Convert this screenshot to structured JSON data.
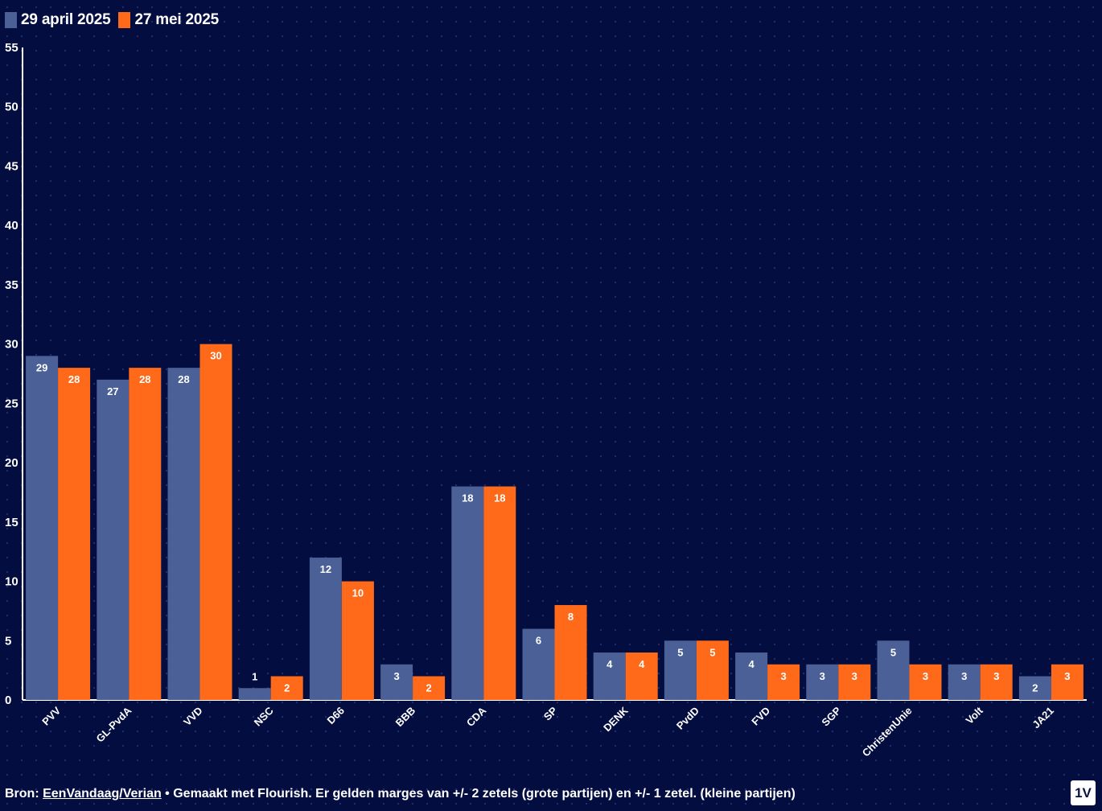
{
  "legend": {
    "series_a": "29 april 2025",
    "series_b": "27 mei 2025"
  },
  "colors": {
    "series_a": "#4a6096",
    "series_b": "#ff6a1a",
    "text": "#ffffff",
    "axis": "#ffffff"
  },
  "chart_data": {
    "type": "bar",
    "title": "",
    "xlabel": "",
    "ylabel": "",
    "ylim": [
      0,
      55
    ],
    "yticks": [
      0,
      5,
      10,
      15,
      20,
      25,
      30,
      35,
      40,
      45,
      50,
      55
    ],
    "categories": [
      "PVV",
      "GL-PvdA",
      "VVD",
      "NSC",
      "D66",
      "BBB",
      "CDA",
      "SP",
      "DENK",
      "PvdD",
      "FVD",
      "SGP",
      "ChristenUnie",
      "Volt",
      "JA21"
    ],
    "series": [
      {
        "name": "29 april 2025",
        "values": [
          29,
          27,
          28,
          1,
          12,
          3,
          18,
          6,
          4,
          5,
          4,
          3,
          5,
          3,
          2
        ]
      },
      {
        "name": "27 mei 2025",
        "values": [
          28,
          28,
          30,
          2,
          10,
          2,
          18,
          8,
          4,
          5,
          3,
          3,
          3,
          3,
          3
        ]
      }
    ],
    "legend_position": "top-left"
  },
  "footer": {
    "source_prefix": "Bron: ",
    "source_link": "EenVandaag/Verian",
    "note": " • Gemaakt met Flourish. Er gelden marges van +/- 2 zetels (grote partijen) en +/- 1 zetel. (kleine partijen)"
  },
  "logo": {
    "text": "1V"
  }
}
